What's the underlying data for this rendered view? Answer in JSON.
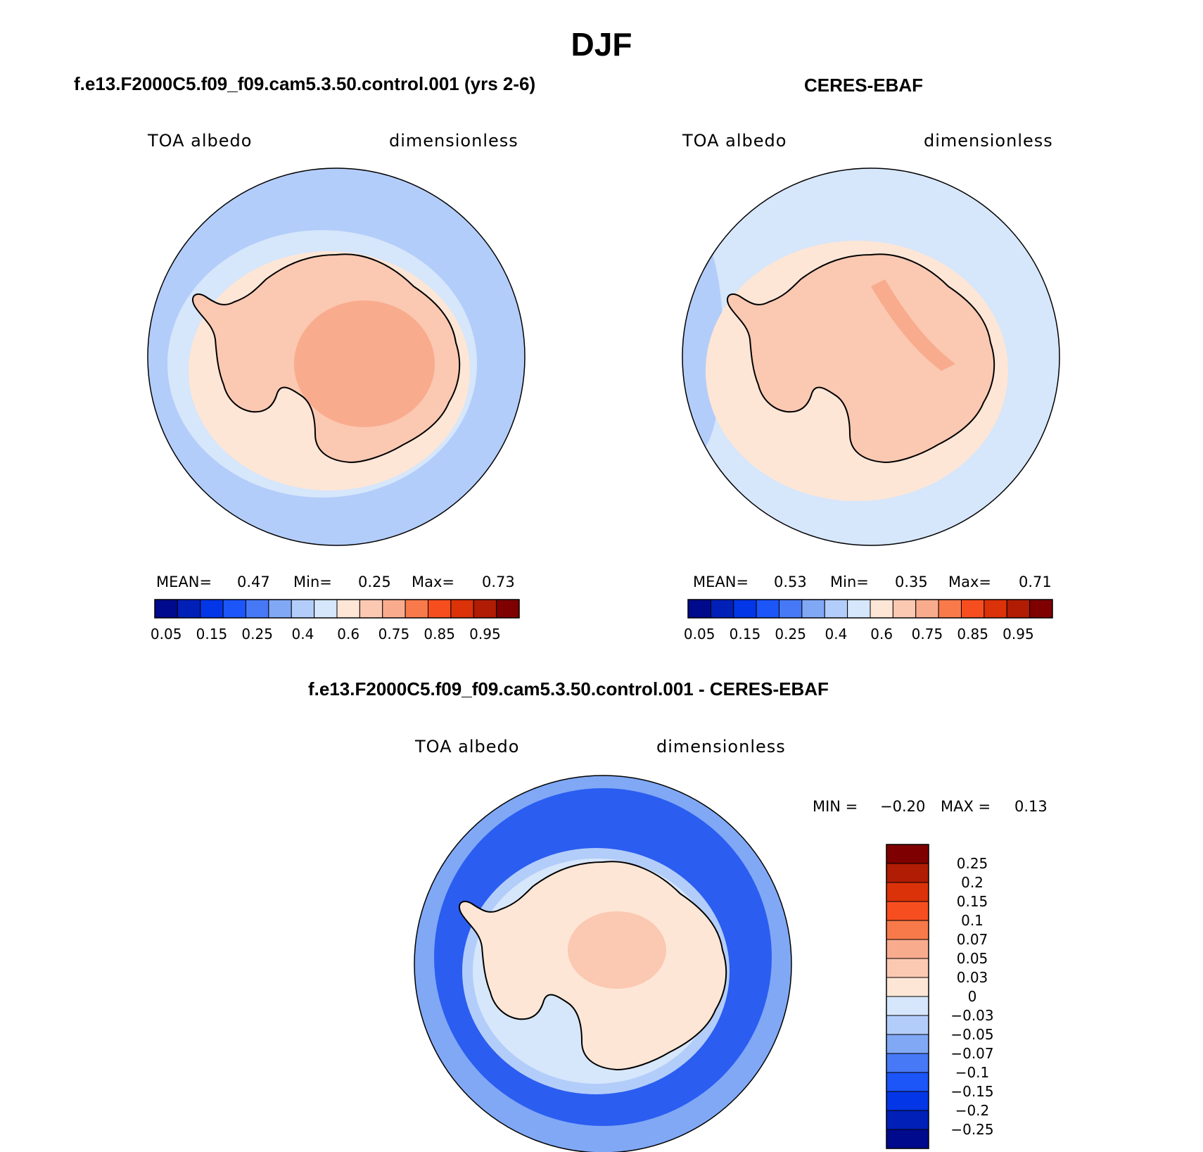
{
  "figure": {
    "title": "DJF"
  },
  "panels": [
    {
      "title": "f.e13.F2000C5.f09_f09.cam5.3.50.control.001 (yrs 2-6)",
      "variable_label": "TOA albedo",
      "units_label": "dimensionless",
      "stats": {
        "mean_label": "MEAN=",
        "mean": "0.47",
        "min_label": "Min=",
        "min": "0.25",
        "max_label": "Max=",
        "max": "0.73"
      },
      "colors": {
        "ocean": "#b3cdfa",
        "ocean_near": "#d6e6fb",
        "ice": "#fde6d6",
        "land": "#fbc8b2",
        "plateau": "#f8ac8d"
      }
    },
    {
      "title": "CERES-EBAF",
      "variable_label": "TOA albedo",
      "units_label": "dimensionless",
      "stats": {
        "mean_label": "MEAN=",
        "mean": "0.53",
        "min_label": "Min=",
        "min": "0.35",
        "max_label": "Max=",
        "max": "0.71"
      },
      "colors": {
        "ocean": "#d6e6fb",
        "ocean_near": "#b3cdfa",
        "ice": "#fde6d6",
        "land": "#fbc8b2",
        "plateau": "#f8ac8d"
      }
    }
  ],
  "difference": {
    "title": "f.e13.F2000C5.f09_f09.cam5.3.50.control.001 - CERES-EBAF",
    "variable_label": "TOA albedo",
    "units_label": "dimensionless",
    "stats": {
      "min_label": "MIN =",
      "min": "−0.20",
      "max_label": "MAX =",
      "max": "0.13"
    },
    "colors": {
      "outer": "#80a8f5",
      "mid": "#2b5df0",
      "inner": "#b3cdfa",
      "shelf": "#d6e6fb",
      "land": "#fde6d6",
      "plateau": "#fbc8b2"
    }
  },
  "colorbar_main": {
    "colors": [
      "#000a8c",
      "#0020b8",
      "#0336e6",
      "#1c55f8",
      "#4779f6",
      "#80a8f5",
      "#b3cdfa",
      "#d6e6fb",
      "#fde6d6",
      "#fbc8b2",
      "#f8ac8d",
      "#f87a4a",
      "#f74e20",
      "#db3209",
      "#b01c04",
      "#7f0000"
    ],
    "tick_labels": [
      "0.05",
      "0.15",
      "0.25",
      "0.4",
      "0.6",
      "0.75",
      "0.85",
      "0.95"
    ]
  },
  "colorbar_diff": {
    "colors": [
      "#000a8c",
      "#0020b8",
      "#0336e6",
      "#1c55f8",
      "#4779f6",
      "#80a8f5",
      "#b3cdfa",
      "#d6e6fb",
      "#fde6d6",
      "#fbc8b2",
      "#f8ac8d",
      "#f87a4a",
      "#f74e20",
      "#db3209",
      "#b01c04",
      "#7f0000"
    ],
    "tick_labels": [
      "−0.25",
      "−0.2",
      "−0.15",
      "−0.1",
      "−0.07",
      "−0.05",
      "−0.03",
      "0",
      "0.03",
      "0.05",
      "0.07",
      "0.1",
      "0.15",
      "0.2",
      "0.25"
    ]
  }
}
